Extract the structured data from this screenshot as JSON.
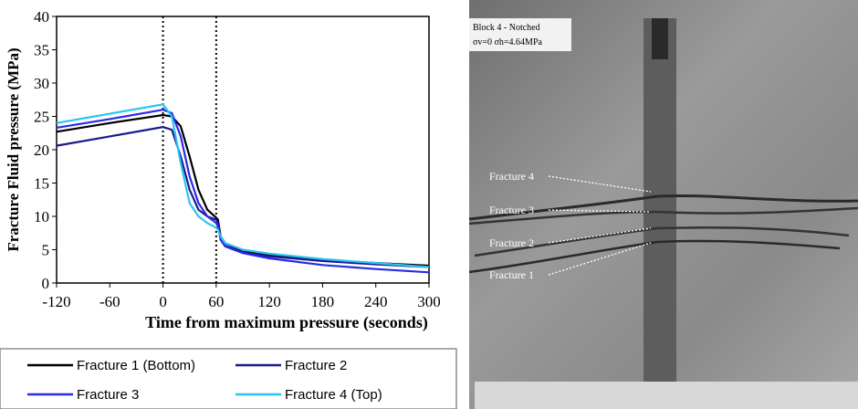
{
  "chart_data": {
    "type": "line",
    "ylabel": "Fracture Fluid pressure (MPa)",
    "xlabel": "Time from maximum pressure (seconds)",
    "x": [
      -120,
      -60,
      0,
      10,
      20,
      30,
      40,
      50,
      60,
      62,
      65,
      70,
      90,
      120,
      180,
      240,
      300
    ],
    "series": [
      {
        "name": "Fracture 1 (Bottom)",
        "color": "#000000",
        "values": [
          22.7,
          24,
          25.2,
          25,
          23.5,
          19,
          14,
          11,
          9.8,
          9.5,
          7,
          6,
          4.8,
          4.2,
          3.5,
          3.0,
          2.6
        ]
      },
      {
        "name": "Fracture 2",
        "color": "#1a1a8c",
        "values": [
          20.6,
          22,
          23.4,
          23,
          19,
          14,
          11,
          10,
          9.5,
          9,
          6.5,
          5.6,
          4.6,
          4,
          3.3,
          2.8,
          2.4
        ]
      },
      {
        "name": "Fracture 3",
        "color": "#2a2ae6",
        "values": [
          23.3,
          24.6,
          26,
          25.5,
          22,
          16,
          12,
          10,
          9,
          8.5,
          6.5,
          5.5,
          4.5,
          3.7,
          2.7,
          2.1,
          1.6
        ]
      },
      {
        "name": "Fracture 4 (Top)",
        "color": "#2cc4f2",
        "values": [
          24,
          25.4,
          26.8,
          25,
          18,
          12,
          10,
          9,
          8.3,
          8,
          7,
          6,
          5,
          4.4,
          3.6,
          3.0,
          2.4
        ]
      }
    ],
    "xlim": [
      -120,
      300
    ],
    "xticks": [
      -120,
      -60,
      0,
      60,
      120,
      180,
      240,
      300
    ],
    "ylim": [
      0,
      40
    ],
    "yticks": [
      0,
      5,
      10,
      15,
      20,
      25,
      30,
      35,
      40
    ],
    "vlines": [
      0,
      60
    ],
    "grid": false
  },
  "photo": {
    "block": "Block 4 - Notched",
    "stress": "σv=0    σh=4.64MPa",
    "labels": [
      "Fracture 4",
      "Fracture 3",
      "Fracture 2",
      "Fracture 1"
    ]
  }
}
